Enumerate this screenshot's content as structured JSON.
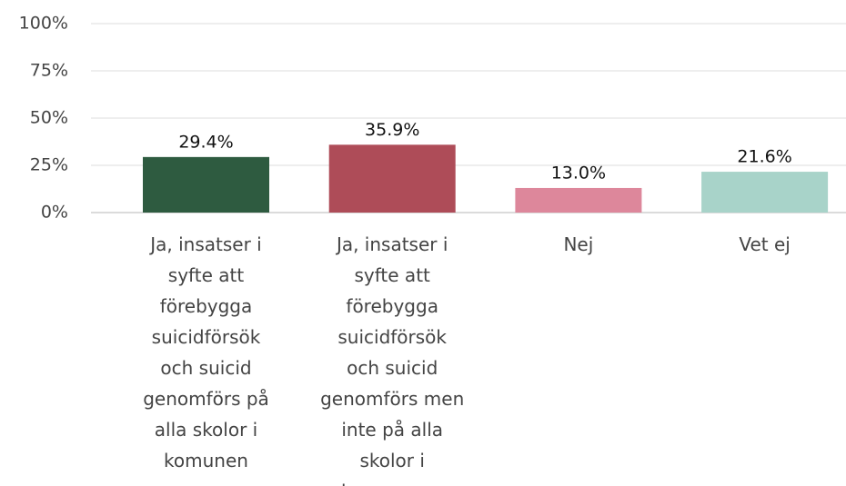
{
  "chart_data": {
    "type": "bar",
    "categories": [
      "Ja, insatser i syfte att förebygga suicidförsök och suicid genomförs på alla skolor i komunen",
      "Ja, insatser i syfte att förebygga suicidförsök och suicid genomförs men inte på alla skolor i kommunen",
      "Nej",
      "Vet ej"
    ],
    "values": [
      29.4,
      35.9,
      13.0,
      21.6
    ],
    "value_labels": [
      "29.4%",
      "35.9%",
      "13.0%",
      "21.6%"
    ],
    "colors": [
      "#2e5b40",
      "#ae4c58",
      "#dd879b",
      "#a8d3c9"
    ],
    "ylim": [
      0,
      100
    ],
    "yticks": [
      {
        "value": 0,
        "label": "0%"
      },
      {
        "value": 25,
        "label": "25%"
      },
      {
        "value": 50,
        "label": "50%"
      },
      {
        "value": 75,
        "label": "75%"
      },
      {
        "value": 100,
        "label": "100%"
      }
    ],
    "grid": true
  }
}
